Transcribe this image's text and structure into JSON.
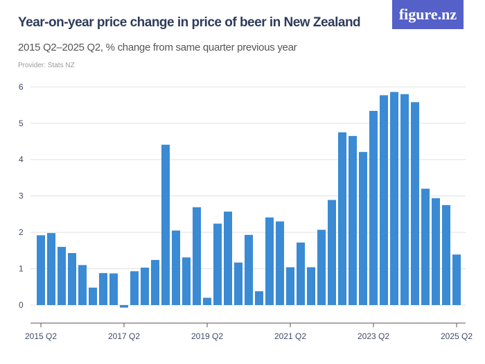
{
  "header": {
    "title": "Year-on-year price change in price of beer in New Zealand",
    "subtitle": "2015 Q2–2025 Q2, % change from same quarter previous year",
    "provider": "Provider: Stats NZ",
    "logo": "figure.nz"
  },
  "colors": {
    "bar": "#3b8ad4",
    "logo_bg": "#5560c8",
    "grid": "#e0e0e0"
  },
  "chart_data": {
    "type": "bar",
    "title": "Year-on-year price change in price of beer in New Zealand",
    "ylim": [
      -0.5,
      6.2
    ],
    "yticks": [
      0,
      1,
      2,
      3,
      4,
      5,
      6
    ],
    "xtick_labels": [
      "2015 Q2",
      "2017 Q2",
      "2019 Q2",
      "2021 Q2",
      "2023 Q2",
      "2025 Q2"
    ],
    "xtick_index": [
      0,
      8,
      16,
      24,
      32,
      40
    ],
    "grid": true,
    "categories": [
      "2015 Q2",
      "2015 Q3",
      "2015 Q4",
      "2016 Q1",
      "2016 Q2",
      "2016 Q3",
      "2016 Q4",
      "2017 Q1",
      "2017 Q2",
      "2017 Q3",
      "2017 Q4",
      "2018 Q1",
      "2018 Q2",
      "2018 Q3",
      "2018 Q4",
      "2019 Q1",
      "2019 Q2",
      "2019 Q3",
      "2019 Q4",
      "2020 Q1",
      "2020 Q2",
      "2020 Q3",
      "2020 Q4",
      "2021 Q1",
      "2021 Q2",
      "2021 Q3",
      "2021 Q4",
      "2022 Q1",
      "2022 Q2",
      "2022 Q3",
      "2022 Q4",
      "2023 Q1",
      "2023 Q2",
      "2023 Q3",
      "2023 Q4",
      "2024 Q1",
      "2024 Q2",
      "2024 Q3",
      "2024 Q4",
      "2025 Q1",
      "2025 Q2"
    ],
    "values": [
      1.92,
      1.98,
      1.6,
      1.43,
      1.1,
      0.48,
      0.88,
      0.87,
      -0.07,
      0.93,
      1.03,
      1.24,
      4.41,
      2.05,
      1.31,
      2.69,
      0.2,
      2.24,
      2.57,
      1.17,
      1.93,
      0.38,
      2.41,
      2.3,
      1.04,
      1.72,
      1.04,
      2.07,
      2.89,
      4.75,
      4.65,
      4.21,
      5.34,
      5.77,
      5.86,
      5.8,
      5.58,
      3.2,
      2.94,
      2.75,
      1.39
    ]
  }
}
